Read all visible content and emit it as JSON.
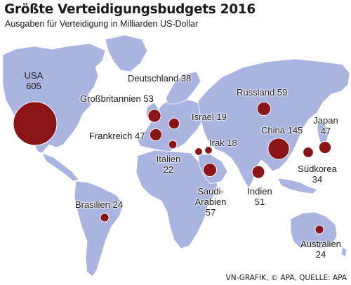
{
  "title": "Größte Verteidigungsbudgets 2016",
  "subtitle": "Ausgaben für Verteidigung in Milliarden US-Dollar",
  "source": "VN-GRAFIK, © APA, QUELLE: APA",
  "colors": {
    "land": "#a9b4e0",
    "bubble": "#8b1416",
    "bubble_stroke": "#ffffff",
    "text": "#1a1a1a"
  },
  "unit": "Mrd. US-Dollar",
  "countries": [
    {
      "id": "usa",
      "name": "USA",
      "value": 605
    },
    {
      "id": "deutschland",
      "name": "Deutschland",
      "value": 38
    },
    {
      "id": "grossbritannien",
      "name": "Großbritannien",
      "value": 53
    },
    {
      "id": "frankreich",
      "name": "Frankreich",
      "value": 47
    },
    {
      "id": "italien",
      "name": "Italien",
      "value": 22
    },
    {
      "id": "russland",
      "name": "Russland",
      "value": 59
    },
    {
      "id": "israel",
      "name": "Israel",
      "value": 19
    },
    {
      "id": "irak",
      "name": "Irak",
      "value": 18
    },
    {
      "id": "saudi-arabien",
      "name": "Saudi-Arabien",
      "value": 57
    },
    {
      "id": "china",
      "name": "China",
      "value": 145
    },
    {
      "id": "japan",
      "name": "Japan",
      "value": 47
    },
    {
      "id": "suedkorea",
      "name": "Südkorea",
      "value": 34
    },
    {
      "id": "indien",
      "name": "Indien",
      "value": 51
    },
    {
      "id": "brasilien",
      "name": "Brasilien",
      "value": 24
    },
    {
      "id": "australien",
      "name": "Australien",
      "value": 24
    }
  ]
}
